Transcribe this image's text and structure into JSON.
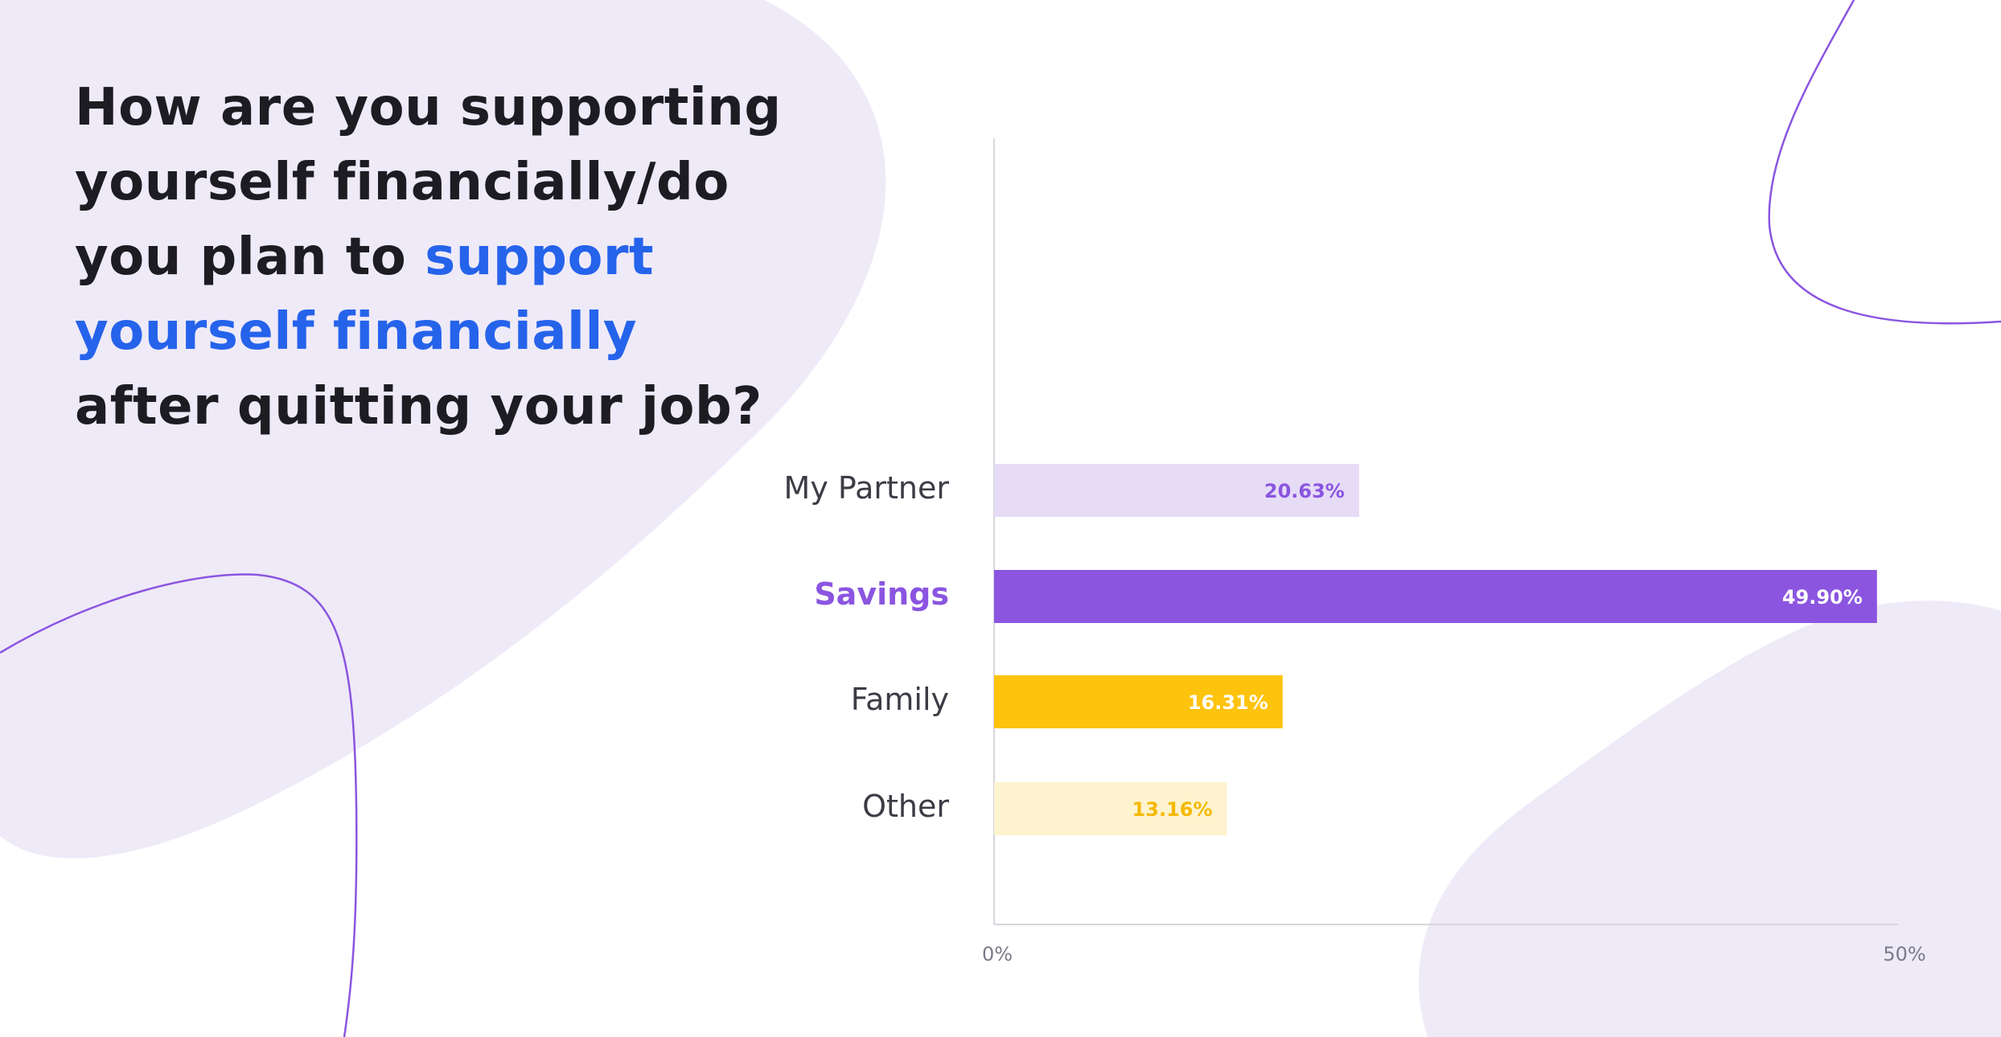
{
  "title": {
    "part1": "How are you supporting yourself financially/do you plan to ",
    "highlight": "support yourself financially",
    "part2": " after quitting your job?"
  },
  "colors": {
    "blob": "#efeaf8",
    "curve": "#8b55e0",
    "title_highlight": "#2563eb",
    "axis": "#d6d6de"
  },
  "chart_data": {
    "type": "bar",
    "orientation": "horizontal",
    "categories": [
      "My Partner",
      "Savings",
      "Family",
      "Other"
    ],
    "values": [
      20.63,
      49.9,
      16.31,
      13.16
    ],
    "value_labels": [
      "20.63%",
      "49.90%",
      "16.31%",
      "13.16%"
    ],
    "bar_colors": [
      "#e6dcf6",
      "#8b55e0",
      "#fec30d",
      "#fdf3ce"
    ],
    "label_colors": [
      "#8b55e0",
      "#ffffff",
      "#ffffff",
      "#f5b800"
    ],
    "highlight_category": "Savings",
    "xlim": [
      0,
      50
    ],
    "ticks": [
      0,
      50
    ],
    "tick_labels": [
      "0%",
      "50%"
    ],
    "title": "",
    "xlabel": "",
    "ylabel": "",
    "grid": false
  }
}
